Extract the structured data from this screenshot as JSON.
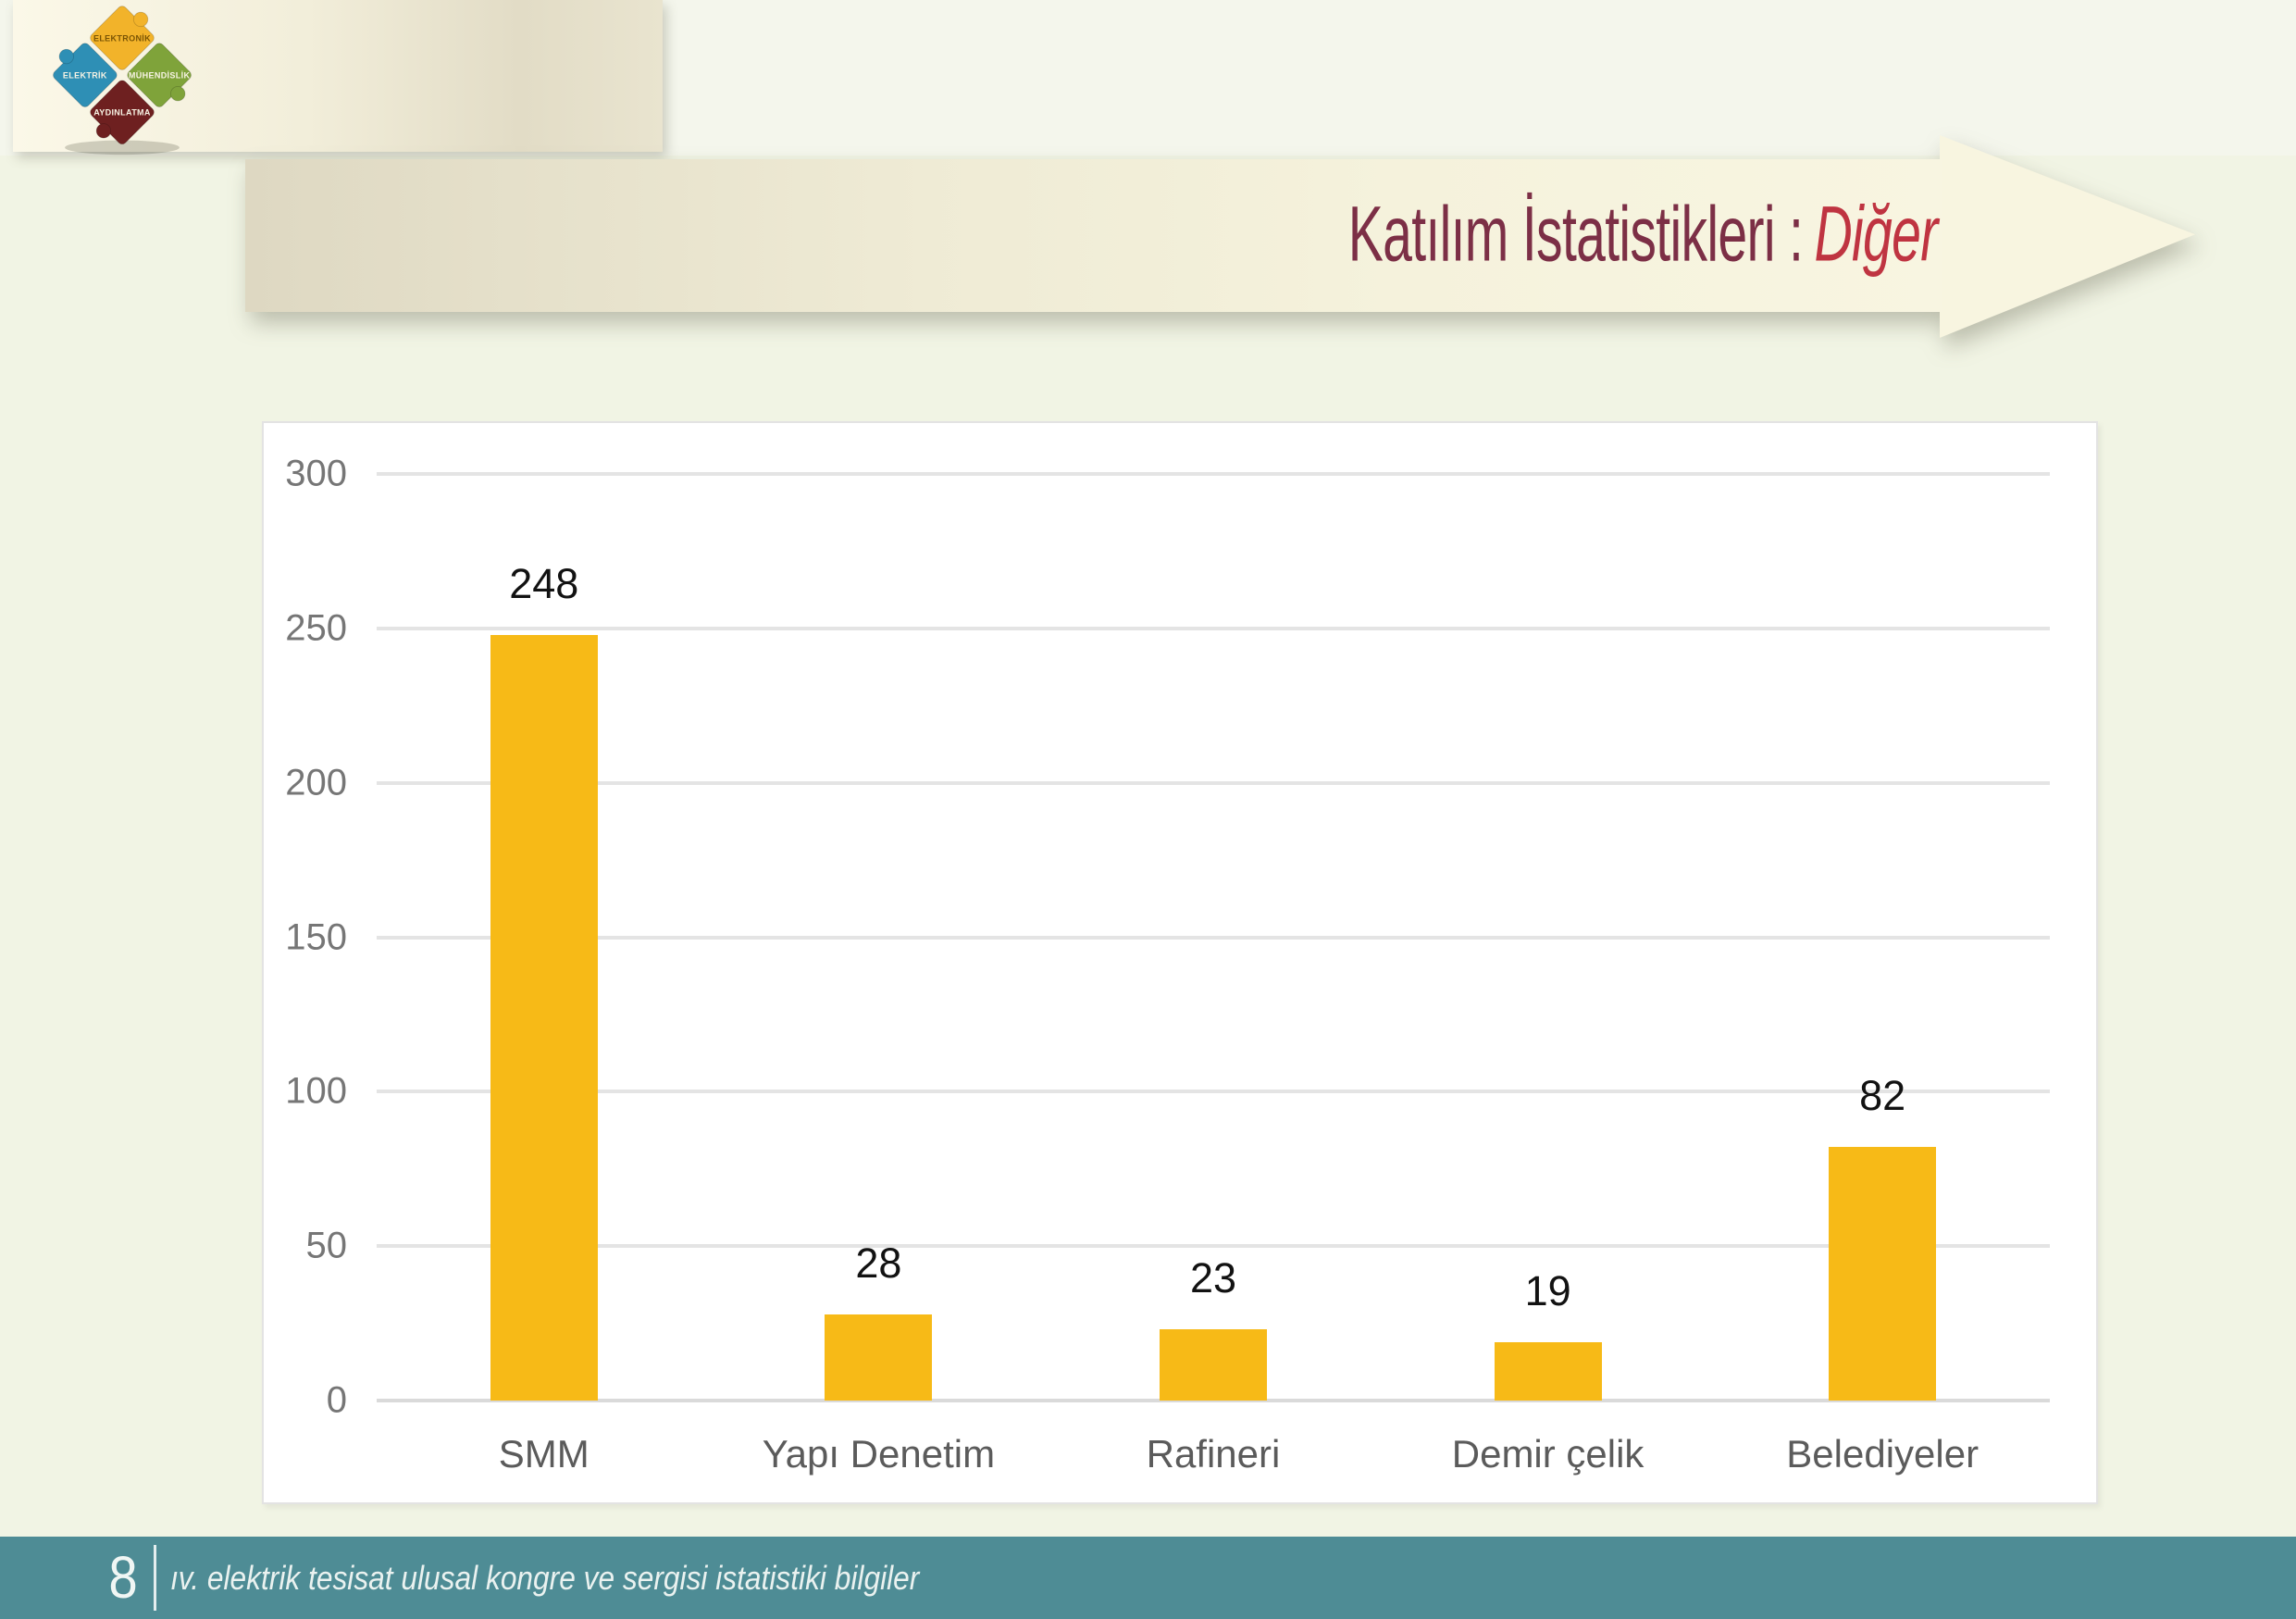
{
  "slide": {
    "background_color": "#F1F4E4",
    "title": {
      "main": "Katılım İstatistikleri :",
      "emphasis": "Diğer",
      "main_color": "#7C2F46",
      "emphasis_color": "#BF3441"
    },
    "logo": {
      "pieces": [
        {
          "label": "ELEKTRONİK",
          "color": "#F2B32A"
        },
        {
          "label": "ELEKTRİK",
          "color": "#2E8FB5"
        },
        {
          "label": "MÜHENDİSLİK",
          "color": "#7FA33A"
        },
        {
          "label": "AYDINLATMA",
          "color": "#6E2020"
        }
      ]
    },
    "footer": {
      "page_number": "8",
      "text": "ıv. elektrik tesisat ulusal kongre ve sergisi istatistiki bilgiler",
      "bar_color": "#4E8C95"
    }
  },
  "chart_data": {
    "type": "bar",
    "categories": [
      "SMM",
      "Yapı Denetim",
      "Rafineri",
      "Demir çelik",
      "Belediyeler"
    ],
    "values": [
      248,
      28,
      23,
      19,
      82
    ],
    "title": "",
    "xlabel": "",
    "ylabel": "",
    "ylim": [
      0,
      300
    ],
    "yticks": [
      0,
      50,
      100,
      150,
      200,
      250,
      300
    ],
    "grid": true,
    "legend": false,
    "value_labels": true,
    "bar_color": "#F7BA17"
  }
}
